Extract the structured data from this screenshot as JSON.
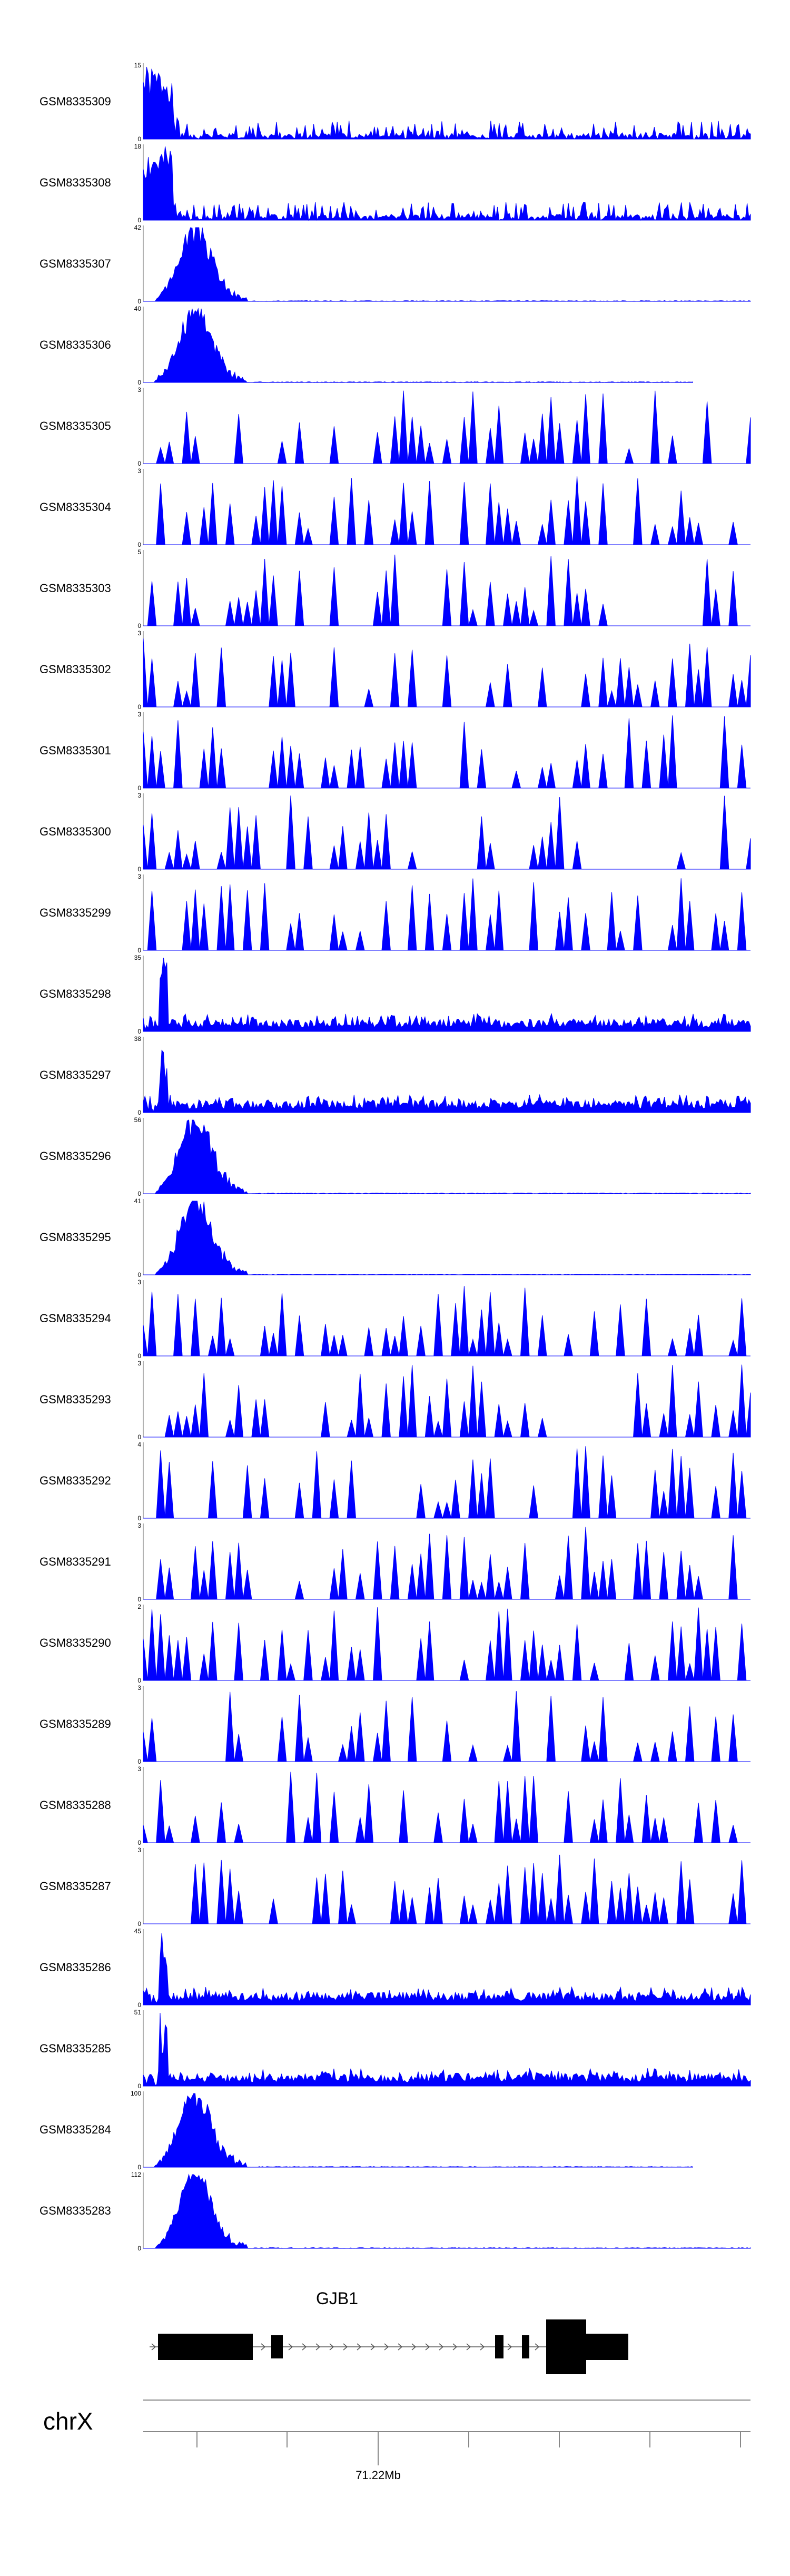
{
  "chart_data": {
    "type": "area",
    "color": "#0000ff",
    "tracks": [
      {
        "name": "GSM8335309",
        "ymax": "15",
        "ymin": "0",
        "max": 15,
        "profile": "early-noisy",
        "seed": 1
      },
      {
        "name": "GSM8335308",
        "ymax": "18",
        "ymin": "0",
        "max": 18,
        "profile": "early-noisy",
        "seed": 2
      },
      {
        "name": "GSM8335307",
        "ymax": "42",
        "ymin": "0",
        "max": 42,
        "profile": "early-peak",
        "seed": 3
      },
      {
        "name": "GSM8335306",
        "ymax": "40",
        "ymin": "0",
        "max": 40,
        "profile": "early-peak",
        "seed": 4
      },
      {
        "name": "GSM8335305",
        "ymax": "3",
        "ymin": "0",
        "max": 3,
        "profile": "spiky",
        "seed": 5
      },
      {
        "name": "GSM8335304",
        "ymax": "3",
        "ymin": "0",
        "max": 3,
        "profile": "spiky",
        "seed": 6
      },
      {
        "name": "GSM8335303",
        "ymax": "5",
        "ymin": "0",
        "max": 5,
        "profile": "spiky",
        "seed": 7
      },
      {
        "name": "GSM8335302",
        "ymax": "3",
        "ymin": "0",
        "max": 3,
        "profile": "spiky",
        "seed": 8
      },
      {
        "name": "GSM8335301",
        "ymax": "3",
        "ymin": "0",
        "max": 3,
        "profile": "spiky",
        "seed": 9
      },
      {
        "name": "GSM8335300",
        "ymax": "3",
        "ymin": "0",
        "max": 3,
        "profile": "spiky",
        "seed": 10
      },
      {
        "name": "GSM8335299",
        "ymax": "3",
        "ymin": "0",
        "max": 3,
        "profile": "spiky",
        "seed": 11
      },
      {
        "name": "GSM8335298",
        "ymax": "35",
        "ymin": "0",
        "max": 35,
        "profile": "early-spike-low",
        "seed": 12
      },
      {
        "name": "GSM8335297",
        "ymax": "38",
        "ymin": "0",
        "max": 38,
        "profile": "early-spike-low",
        "seed": 13
      },
      {
        "name": "GSM8335296",
        "ymax": "56",
        "ymin": "0",
        "max": 56,
        "profile": "early-peak",
        "seed": 14
      },
      {
        "name": "GSM8335295",
        "ymax": "41",
        "ymin": "0",
        "max": 41,
        "profile": "early-peak",
        "seed": 15
      },
      {
        "name": "GSM8335294",
        "ymax": "3",
        "ymin": "0",
        "max": 3,
        "profile": "spiky",
        "seed": 16
      },
      {
        "name": "GSM8335293",
        "ymax": "3",
        "ymin": "0",
        "max": 3,
        "profile": "spiky",
        "seed": 17
      },
      {
        "name": "GSM8335292",
        "ymax": "4",
        "ymin": "0",
        "max": 4,
        "profile": "spiky",
        "seed": 18
      },
      {
        "name": "GSM8335291",
        "ymax": "3",
        "ymin": "0",
        "max": 3,
        "profile": "spiky",
        "seed": 19
      },
      {
        "name": "GSM8335290",
        "ymax": "2",
        "ymin": "0",
        "max": 2,
        "profile": "spiky",
        "seed": 20
      },
      {
        "name": "GSM8335289",
        "ymax": "3",
        "ymin": "0",
        "max": 3,
        "profile": "spiky",
        "seed": 21
      },
      {
        "name": "GSM8335288",
        "ymax": "3",
        "ymin": "0",
        "max": 3,
        "profile": "spiky",
        "seed": 22
      },
      {
        "name": "GSM8335287",
        "ymax": "3",
        "ymin": "0",
        "max": 3,
        "profile": "spiky",
        "seed": 23
      },
      {
        "name": "GSM8335286",
        "ymax": "45",
        "ymin": "0",
        "max": 45,
        "profile": "early-spike-low",
        "seed": 24
      },
      {
        "name": "GSM8335285",
        "ymax": "51",
        "ymin": "0",
        "max": 51,
        "profile": "early-spike-low",
        "seed": 25
      },
      {
        "name": "GSM8335284",
        "ymax": "100",
        "ymin": "0",
        "max": 100,
        "profile": "early-peak",
        "seed": 26
      },
      {
        "name": "GSM8335283",
        "ymax": "112",
        "ymin": "0",
        "max": 112,
        "profile": "early-peak",
        "seed": 27
      }
    ],
    "gene": {
      "name": "GJB1",
      "strand": "+"
    },
    "chromosome": "chrX",
    "position_label": "71.22Mb"
  }
}
